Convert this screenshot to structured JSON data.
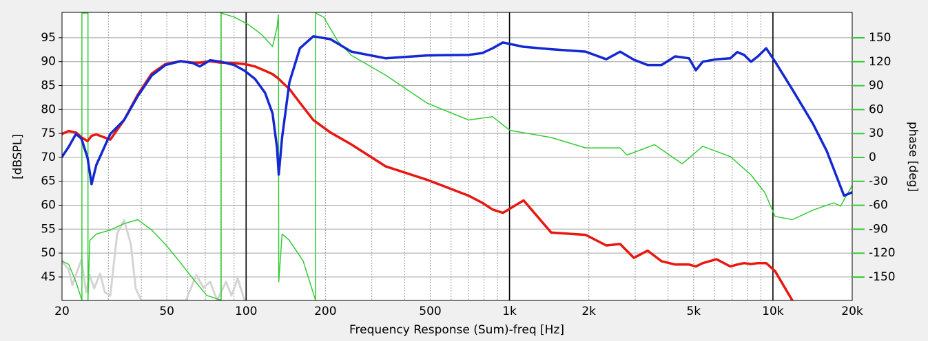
{
  "chart_data": {
    "type": "line",
    "xlabel": "Frequency Response (Sum)-freq [Hz]",
    "ylabel": "[dBSPL]",
    "y2label": "phase [deg]",
    "xscale": "log",
    "xlim": [
      20,
      20000
    ],
    "xticks": [
      20,
      50,
      100,
      200,
      500,
      {
        "value": 1000,
        "label": "1k"
      },
      {
        "value": 2000,
        "label": "2k"
      },
      {
        "value": 5000,
        "label": "5k"
      },
      {
        "value": 10000,
        "label": "10k"
      },
      {
        "value": 20000,
        "label": "20k"
      }
    ],
    "x_minor_grid": [
      30,
      40,
      60,
      70,
      80,
      90,
      300,
      400,
      600,
      700,
      800,
      900,
      3000,
      4000,
      6000,
      7000,
      8000,
      9000
    ],
    "ylim": [
      40.1,
      100.3
    ],
    "yticks": [
      45,
      50,
      55,
      60,
      65,
      70,
      75,
      80,
      85,
      90,
      95
    ],
    "y2lim": [
      -179.3,
      181.9
    ],
    "y2ticks": [
      -150,
      -120,
      -90,
      -60,
      -30,
      0,
      30,
      60,
      90,
      120,
      150
    ],
    "grid": true,
    "x": [
      20,
      21.2,
      22.6,
      23.7,
      25,
      25.9,
      27,
      30.5,
      34.4,
      38.8,
      43.8,
      49.4,
      56.4,
      62.8,
      66.7,
      73,
      79.9,
      90.1,
      98.7,
      108,
      118,
      126,
      131,
      133,
      137,
      146,
      160,
      180,
      209,
      251,
      339,
      487,
      699,
      788,
      863,
      944,
      1131,
      1439,
      1945,
      2330,
      2630,
      2966,
      3346,
      3774,
      4257,
      4802,
      5100,
      5416,
      6109,
      6891,
      7318,
      7773,
      8256,
      8769,
      9425,
      10192,
      11852,
      14200,
      16015,
      18620,
      20000
    ],
    "series": [
      {
        "color": "#d4d4d4",
        "width": 3,
        "x": [
          20,
          21.2,
          21.9,
          22.8,
          23.7,
          24.7,
          25.5,
          26.5,
          27.9,
          29.1,
          30.5,
          32.4,
          34.4,
          36.5,
          38.1,
          40,
          59.1,
          64.7,
          68.8,
          73,
          77.6,
          83.9,
          88,
          92.9,
          98.7
        ],
        "values": [
          48.3,
          46.6,
          43.3,
          46.1,
          48.6,
          41.8,
          45.4,
          42.6,
          45.7,
          41.8,
          41.1,
          54.1,
          56.9,
          51.9,
          42.6,
          40.1,
          40.1,
          45.4,
          42.8,
          44.0,
          40.1,
          44.0,
          41.1,
          44.7,
          40.1
        ]
      },
      {
        "color": "#33cc33",
        "width": 1.5,
        "axis": "y2",
        "x": [
          20,
          21.2,
          22.6,
          23.8,
          23.8,
          25.1,
          25.1,
          25.5,
          27,
          30.5,
          34.4,
          38.8,
          43.8,
          49.4,
          55.7,
          62.8,
          70.9,
          80.4,
          80.4,
          90.1,
          101.7,
          114.7,
          126,
          131,
          132.6,
          133,
          137,
          146,
          164.7,
          183.5,
          183.5,
          197,
          222.6,
          251,
          339,
          487,
          699,
          863,
          1003,
          1439,
          1945,
          2630,
          2792,
          3552,
          4522,
          5416,
          6891,
          8256,
          9314,
          10192,
          11852,
          14200,
          17010,
          18066,
          20000
        ],
        "values": [
          -130,
          -134,
          -156,
          -179,
          181,
          181,
          -179,
          -104,
          -96,
          -91,
          -83,
          -78,
          -91,
          -109,
          -130,
          -152,
          -173,
          -179,
          181,
          176,
          167,
          154,
          139,
          163,
          179,
          -156,
          -96,
          -104,
          -130,
          -179,
          181,
          176,
          146,
          128,
          103,
          68,
          47,
          51,
          34,
          25,
          12,
          12,
          3,
          16,
          -8,
          14,
          1,
          -22,
          -44,
          -74,
          -78,
          -66,
          -57,
          -61,
          -35
        ]
      },
      {
        "color": "#e8170f",
        "width": 3.5,
        "values": [
          74.9,
          75.5,
          75.2,
          74.2,
          73.4,
          74.5,
          74.8,
          73.7,
          77.8,
          83.1,
          87.5,
          89.5,
          90.1,
          89.8,
          89.8,
          90.1,
          89.8,
          89.7,
          89.5,
          89.0,
          88.1,
          87.4,
          86.7,
          86.4,
          85.7,
          84.3,
          81.4,
          77.8,
          75.2,
          72.7,
          68.1,
          65.3,
          62.0,
          60.5,
          59.1,
          58.4,
          61.0,
          54.3,
          53.8,
          51.6,
          51.9,
          49.0,
          50.5,
          48.3,
          47.6,
          47.6,
          47.2,
          47.9,
          48.7,
          47.2,
          47.6,
          47.9,
          47.7,
          47.9,
          47.9,
          46.2,
          40.1,
          null,
          null,
          null,
          null
        ]
      },
      {
        "color": "#1428d2",
        "width": 3.5,
        "values": [
          70.1,
          72.2,
          74.9,
          73.9,
          69.9,
          64.4,
          68.4,
          74.9,
          77.8,
          82.8,
          87.1,
          89.3,
          90.1,
          89.7,
          89.0,
          90.3,
          90.0,
          89.3,
          88.1,
          86.4,
          83.5,
          79.2,
          72.0,
          66.4,
          74.2,
          85.7,
          92.8,
          95.3,
          94.7,
          92.1,
          90.7,
          91.3,
          91.4,
          91.8,
          92.8,
          94.0,
          93.1,
          92.6,
          92.1,
          90.5,
          92.1,
          90.4,
          89.3,
          89.3,
          91.1,
          90.7,
          88.2,
          90.0,
          90.5,
          90.7,
          92.0,
          91.4,
          90.0,
          91.1,
          92.8,
          90.0,
          84.2,
          77.0,
          71.3,
          62.0,
          62.7
        ]
      }
    ]
  }
}
